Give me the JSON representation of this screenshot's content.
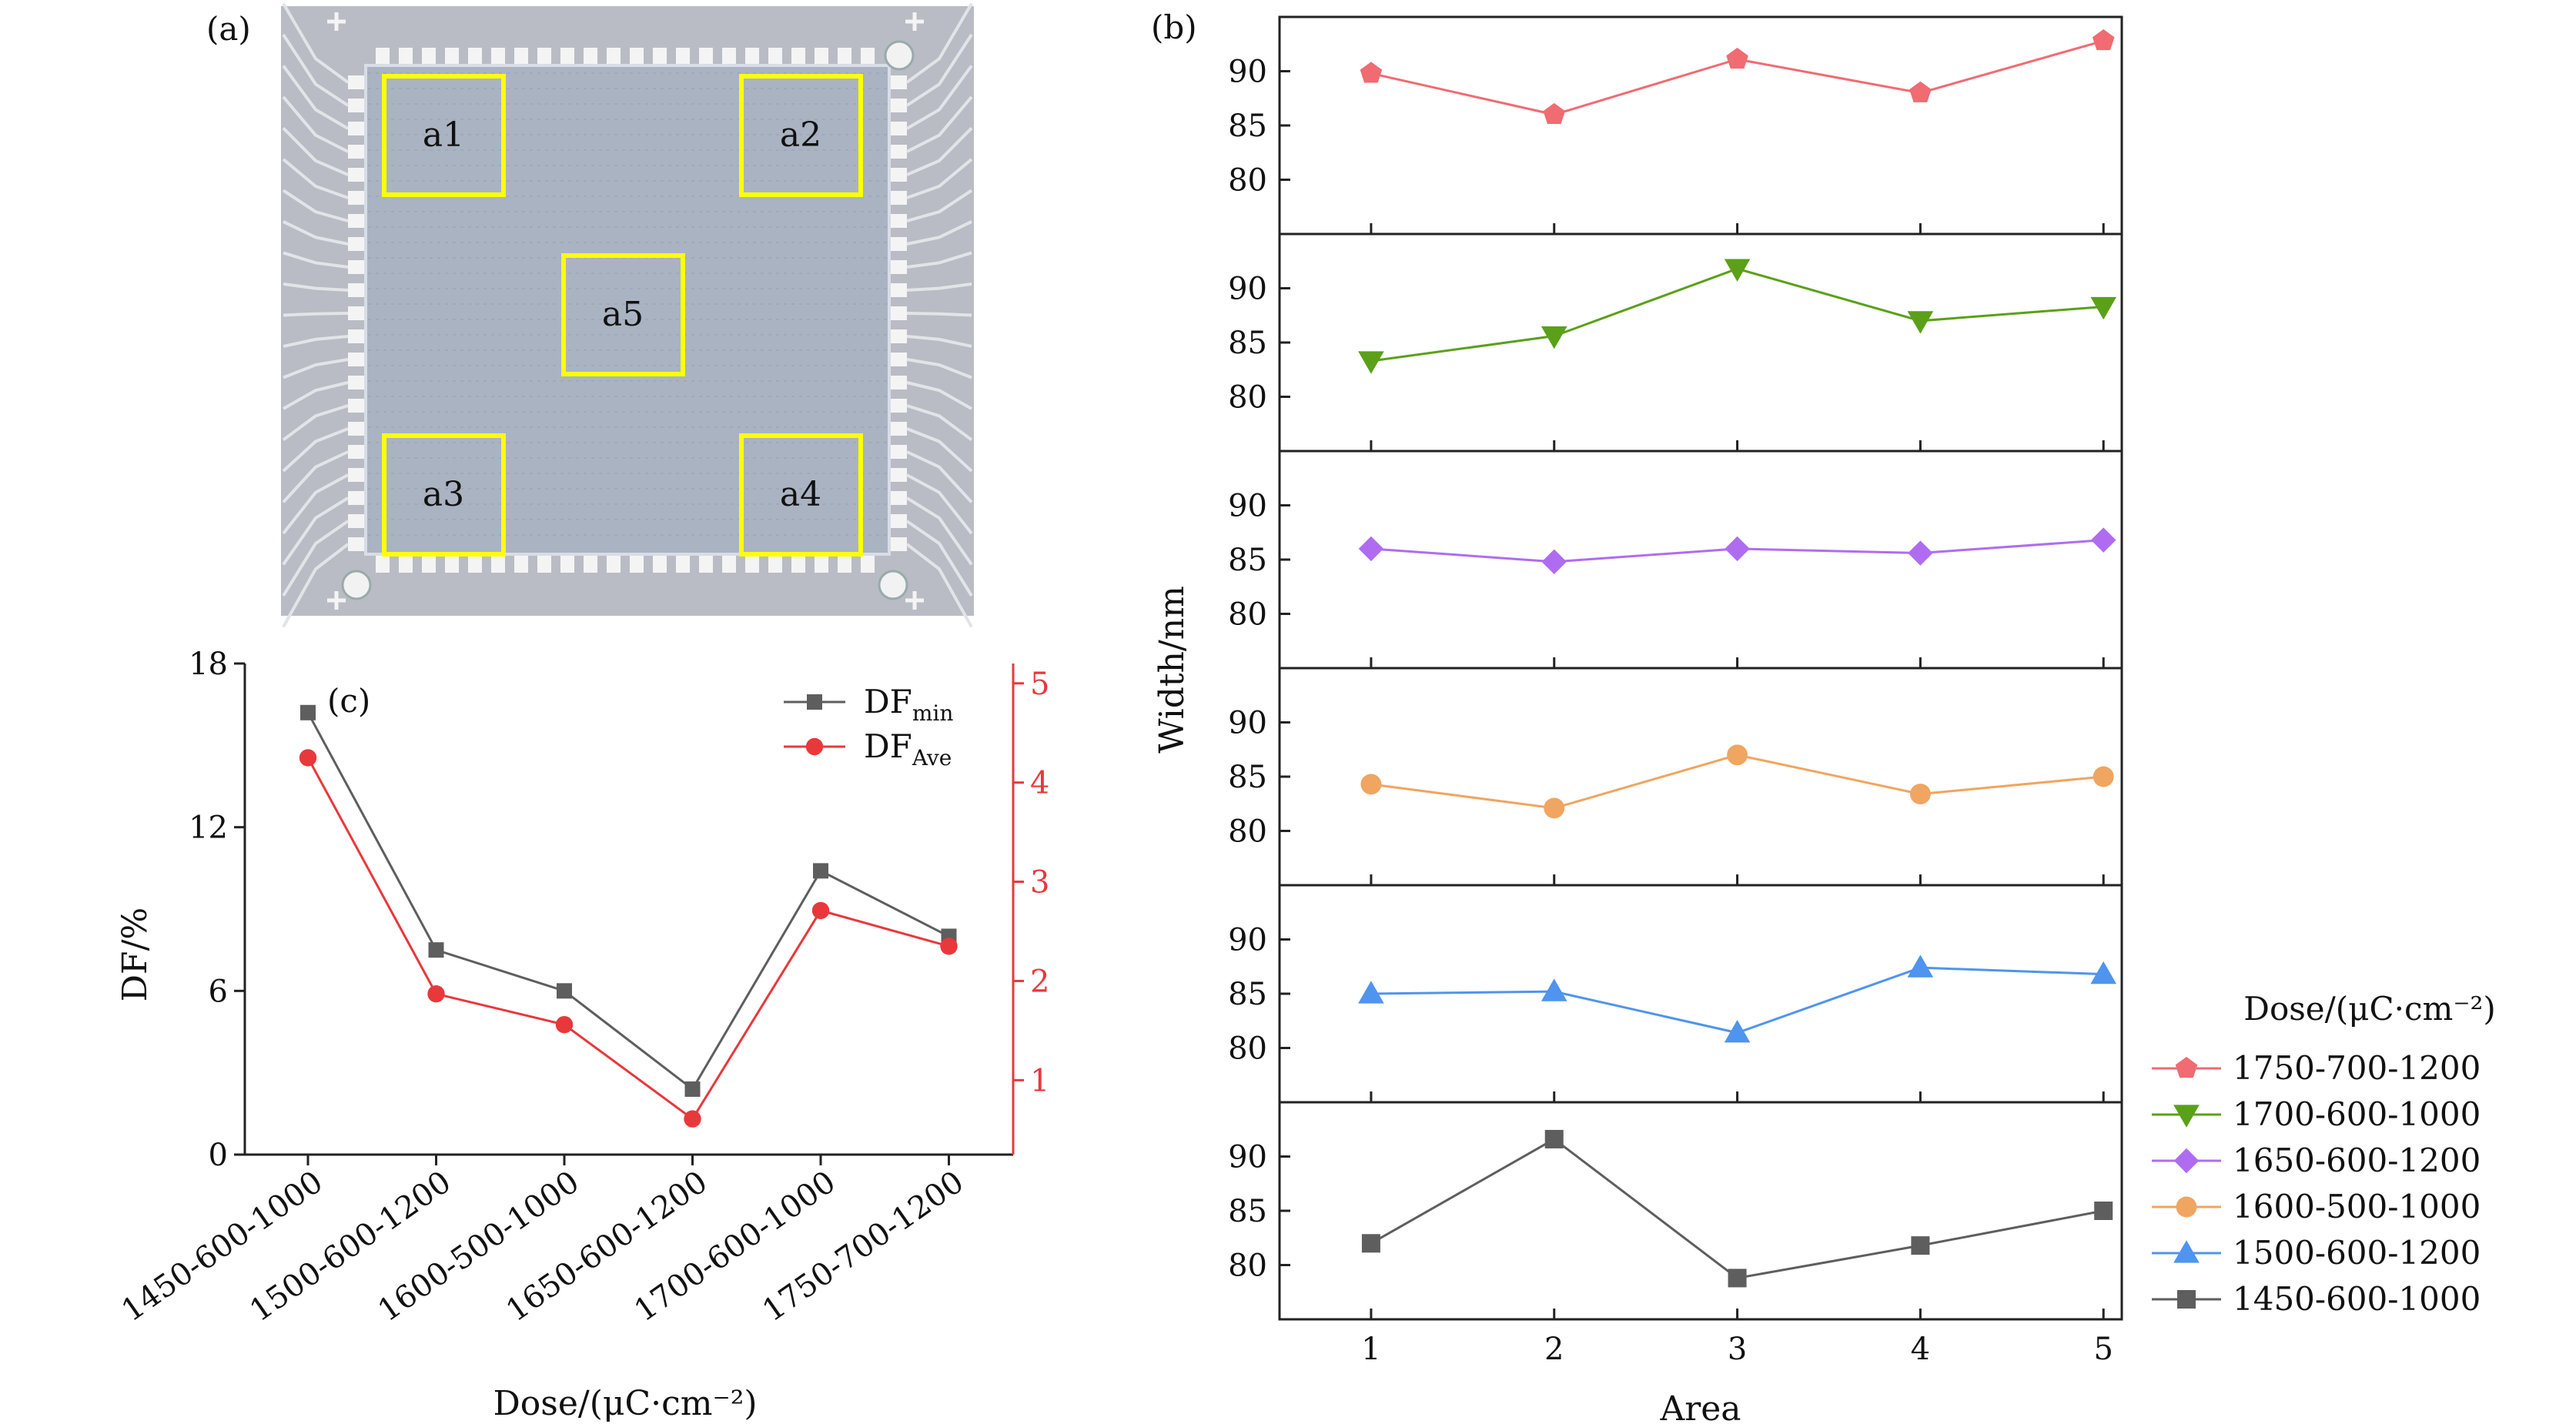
{
  "figure": {
    "panel_a": {
      "label": "(a)",
      "regions": [
        {
          "label": "a1"
        },
        {
          "label": "a2"
        },
        {
          "label": "a3"
        },
        {
          "label": "a4"
        },
        {
          "label": "a5"
        }
      ],
      "highlight_color": "#ffff00",
      "substrate_color": "#b9bcc4",
      "array_color": "#aab3c2"
    },
    "panel_b": {
      "label": "(b)"
    },
    "panel_c": {
      "label": "(c)"
    }
  },
  "chart_data": [
    {
      "id": "b",
      "type": "line",
      "xlabel": "Area",
      "ylabel": "Width/nm",
      "x": [
        1,
        2,
        3,
        4,
        5
      ],
      "xticks": [
        "1",
        "2",
        "3",
        "4",
        "5"
      ],
      "yticks": [
        "80",
        "85",
        "90"
      ],
      "ylim": [
        75,
        95
      ],
      "legend": {
        "title": "Dose/(μC·cm⁻²)",
        "placement": "right"
      },
      "series": [
        {
          "name": "1750-700-1200",
          "color": "#f06b72",
          "marker": "pentagon",
          "values": [
            89.8,
            86.0,
            91.1,
            88.0,
            92.8
          ]
        },
        {
          "name": "1700-600-1000",
          "color": "#5aa019",
          "marker": "triangle-down",
          "values": [
            83.3,
            85.6,
            91.8,
            87.0,
            88.3
          ]
        },
        {
          "name": "1650-600-1200",
          "color": "#b06cf0",
          "marker": "diamond",
          "values": [
            86.0,
            84.8,
            86.0,
            85.6,
            86.8
          ]
        },
        {
          "name": "1600-500-1000",
          "color": "#f0a560",
          "marker": "circle",
          "values": [
            84.3,
            82.1,
            87.0,
            83.4,
            85.0
          ]
        },
        {
          "name": "1500-600-1200",
          "color": "#4f94ee",
          "marker": "triangle-up",
          "values": [
            85.0,
            85.2,
            81.4,
            87.4,
            86.8
          ]
        },
        {
          "name": "1450-600-1000",
          "color": "#5e5e5e",
          "marker": "square",
          "values": [
            82.0,
            91.6,
            78.8,
            81.8,
            85.0
          ]
        }
      ]
    },
    {
      "id": "c",
      "type": "line",
      "xlabel": "Dose/(μC·cm⁻²)",
      "ylabel": "DF/%",
      "categories": [
        "1450-600-1000",
        "1500-600-1200",
        "1600-500-1000",
        "1650-600-1200",
        "1700-600-1000",
        "1750-700-1200"
      ],
      "y_left": {
        "lim": [
          0,
          18
        ],
        "ticks": [
          "0",
          "6",
          "12",
          "18"
        ]
      },
      "y_right": {
        "lim": [
          0.25,
          5.2
        ],
        "ticks": [
          "1",
          "2",
          "3",
          "4",
          "5"
        ],
        "color": "#e8383c"
      },
      "legend": {
        "placement": "top-right"
      },
      "series": [
        {
          "name": "DF",
          "subscript": "min",
          "axis": "left",
          "color": "#5e5e5e",
          "marker": "square",
          "values": [
            16.2,
            7.5,
            6.0,
            2.4,
            10.4,
            8.0
          ]
        },
        {
          "name": "DF",
          "subscript": "Ave",
          "axis": "right",
          "color": "#e8383c",
          "marker": "circle",
          "values": [
            4.25,
            1.87,
            1.56,
            0.61,
            2.71,
            2.35
          ]
        }
      ]
    }
  ]
}
